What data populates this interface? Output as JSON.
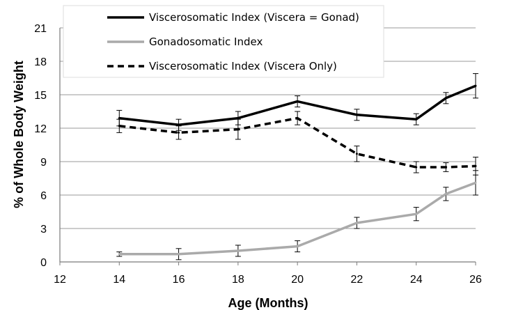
{
  "chart_data": {
    "type": "line",
    "title": "",
    "xlabel": "Age (Months)",
    "ylabel": "% of Whole  Body Weight",
    "xlim": [
      12,
      26
    ],
    "ylim": [
      0,
      21
    ],
    "x_ticks": [
      12,
      14,
      16,
      18,
      20,
      22,
      24,
      26
    ],
    "y_ticks": [
      0,
      3,
      6,
      9,
      12,
      15,
      18,
      21
    ],
    "grid": "horizontal",
    "legend_position": "top-left",
    "series": [
      {
        "name": "Viscerosomatic Index (Viscera = Gonad)",
        "color": "#000000",
        "style": "solid",
        "x": [
          14,
          16,
          18,
          20,
          22,
          24,
          25,
          26
        ],
        "y": [
          12.9,
          12.3,
          12.9,
          14.4,
          13.2,
          12.8,
          14.7,
          15.8
        ],
        "err": [
          0.7,
          0.5,
          0.6,
          0.5,
          0.5,
          0.5,
          0.5,
          1.1
        ]
      },
      {
        "name": "Gonadosomatic Index",
        "color": "#aaaaaa",
        "style": "solid",
        "x": [
          14,
          16,
          18,
          20,
          22,
          24,
          25,
          26
        ],
        "y": [
          0.7,
          0.7,
          1.0,
          1.4,
          3.5,
          4.3,
          6.1,
          7.1
        ],
        "err": [
          0.2,
          0.5,
          0.5,
          0.5,
          0.5,
          0.6,
          0.6,
          1.1
        ]
      },
      {
        "name": "Viscerosomatic Index (Viscera Only)",
        "color": "#000000",
        "style": "dashed",
        "x": [
          14,
          16,
          18,
          20,
          22,
          24,
          25,
          26
        ],
        "y": [
          12.2,
          11.6,
          11.9,
          12.9,
          9.7,
          8.5,
          8.5,
          8.6
        ],
        "err": [
          0.6,
          0.6,
          0.9,
          0.6,
          0.7,
          0.5,
          0.4,
          0.8
        ]
      }
    ]
  }
}
